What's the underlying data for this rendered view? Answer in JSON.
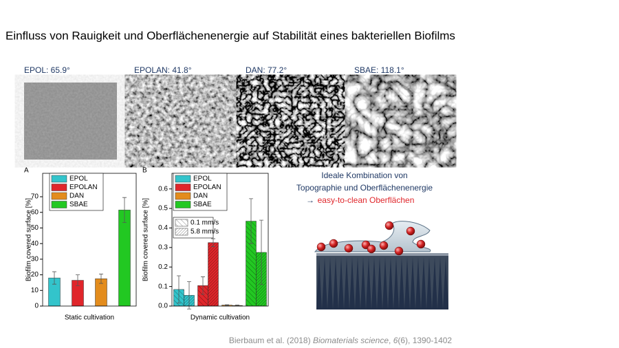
{
  "title": "Einfluss von Rauigkeit und Oberflächenenergie auf Stabilität eines bakteriellen Biofilms",
  "images": [
    {
      "label": "EPOL: 65.9°"
    },
    {
      "label": "EPOLAN: 41.8°"
    },
    {
      "label": "DAN: 77.2°"
    },
    {
      "label": "SBAE: 118.1°"
    }
  ],
  "note": {
    "line1": "Ideale Kombination von",
    "line2": "Topographie und Oberflächenenergie",
    "arrow": "→",
    "line3": "easy-to-clean Oberflächen"
  },
  "citation": {
    "authors": "Bierbaum et al. (2018)",
    "journal": "Biomaterials science",
    "sep": ",",
    "volume": "6",
    "rest": "(6), 1390-1402"
  },
  "chart_data": [
    {
      "type": "bar",
      "panel": "A",
      "ylabel": "Biofilm covered surface [%]",
      "xlabel": "Static cultivation",
      "ylim": [
        0,
        85
      ],
      "yticks": [
        0,
        10,
        20,
        30,
        40,
        50,
        60,
        70
      ],
      "series": [
        {
          "name": "EPOL",
          "color": "#33c4cb",
          "values": [
            18
          ],
          "errors": [
            4
          ]
        },
        {
          "name": "EPOLAN",
          "color": "#e0262b",
          "values": [
            16.5
          ],
          "errors": [
            3.5
          ]
        },
        {
          "name": "DAN",
          "color": "#e38c1d",
          "values": [
            17.5
          ],
          "errors": [
            3
          ]
        },
        {
          "name": "SBAE",
          "color": "#22c822",
          "values": [
            61.5
          ],
          "errors": [
            8
          ]
        }
      ]
    },
    {
      "type": "bar",
      "panel": "B",
      "ylabel": "Biofilm covered surface [%]",
      "xlabel": "Dynamic cultivation",
      "ylim": [
        0,
        0.68
      ],
      "yticks": [
        {
          "value": 0,
          "label": "0.0"
        },
        0.1,
        0.2,
        0.3,
        0.4,
        0.5,
        0.6
      ],
      "categories": [
        "0.1 mm/s",
        "5.8 mm/s"
      ],
      "series": [
        {
          "name": "EPOL",
          "color": "#33c4cb",
          "values": [
            0.085,
            0.055
          ],
          "errors": [
            0.07,
            0.07
          ]
        },
        {
          "name": "EPOLAN",
          "color": "#e0262b",
          "values": [
            0.105,
            0.325
          ],
          "errors": [
            0.045,
            0.02
          ]
        },
        {
          "name": "DAN",
          "color": "#e38c1d",
          "values": [
            0.005,
            0.003
          ],
          "errors": [
            0.002,
            0.002
          ]
        },
        {
          "name": "SBAE",
          "color": "#22c822",
          "values": [
            0.435,
            0.275
          ],
          "errors": [
            0.115,
            0.165
          ]
        }
      ]
    }
  ]
}
